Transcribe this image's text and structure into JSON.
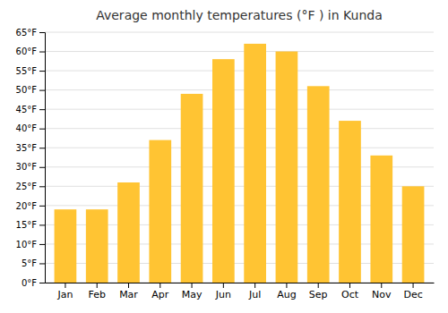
{
  "chart_data": {
    "type": "bar",
    "title": "Average monthly temperatures (°F ) in Kunda",
    "categories": [
      "Jan",
      "Feb",
      "Mar",
      "Apr",
      "May",
      "Jun",
      "Jul",
      "Aug",
      "Sep",
      "Oct",
      "Nov",
      "Dec"
    ],
    "values": [
      19,
      19,
      26,
      37,
      49,
      58,
      62,
      60,
      51,
      42,
      33,
      25
    ],
    "color": "#FFC433",
    "ylim": [
      0,
      65
    ],
    "yticks": [
      {
        "value": 0,
        "label": "0°F"
      },
      {
        "value": 5,
        "label": "5°F"
      },
      {
        "value": 10,
        "label": "10°F"
      },
      {
        "value": 15,
        "label": "15°F"
      },
      {
        "value": 20,
        "label": "20°F"
      },
      {
        "value": 25,
        "label": "25°F"
      },
      {
        "value": 30,
        "label": "30°F"
      },
      {
        "value": 35,
        "label": "35°F"
      },
      {
        "value": 40,
        "label": "40°F"
      },
      {
        "value": 45,
        "label": "45°F"
      },
      {
        "value": 50,
        "label": "50°F"
      },
      {
        "value": 55,
        "label": "55°F"
      },
      {
        "value": 60,
        "label": "60°F"
      },
      {
        "value": 65,
        "label": "65°F"
      }
    ],
    "grid": true
  }
}
